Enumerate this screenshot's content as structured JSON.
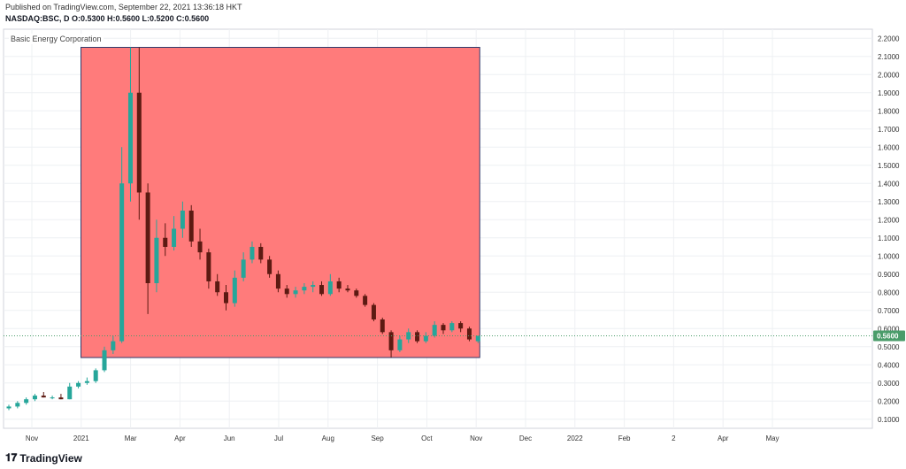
{
  "header": {
    "published": "Published on TradingView.com, September 22, 2021 13:36:18 HKT",
    "ohlc": "NASDAQ:BSC, D  O:0.5300 H:0.5600 L:0.5200 C:0.5600"
  },
  "footer": {
    "logo_mark": "𝟏𝟕",
    "brand": "TradingView"
  },
  "colors": {
    "up": "#26a69a",
    "down": "#5d1a12",
    "box": "#ff7b7b",
    "price_tag": "#4a9c6a"
  },
  "chart_data": {
    "type": "candlestick",
    "title": "Basic Energy Corporation",
    "price_label": "0.5600",
    "x_ticks": [
      "Nov",
      "2021",
      "Mar",
      "Apr",
      "Jun",
      "Jul",
      "Aug",
      "Sep",
      "Oct",
      "Nov",
      "Dec",
      "2022",
      "Feb",
      "2",
      "Apr",
      "May"
    ],
    "y_ticks": [
      "0.1000",
      "0.2000",
      "0.3000",
      "0.4000",
      "0.5000",
      "0.6000",
      "0.7000",
      "0.8000",
      "0.9000",
      "1.0000",
      "1.1000",
      "1.2000",
      "1.3000",
      "1.4000",
      "1.5000",
      "1.6000",
      "1.7000",
      "1.8000",
      "1.9000",
      "2.0000",
      "2.1000",
      "2.2000"
    ],
    "ylim": [
      0.05,
      2.25
    ],
    "last_price": 0.56,
    "box": {
      "x_start": 8.3,
      "x_end": 54.2,
      "y_low": 0.44,
      "y_high": 2.15
    },
    "x_index_range": [
      0,
      100
    ],
    "series": [
      {
        "t": 0,
        "o": 0.16,
        "h": 0.18,
        "l": 0.15,
        "c": 0.17
      },
      {
        "t": 1,
        "o": 0.17,
        "h": 0.2,
        "l": 0.16,
        "c": 0.19
      },
      {
        "t": 2,
        "o": 0.19,
        "h": 0.22,
        "l": 0.18,
        "c": 0.21
      },
      {
        "t": 3,
        "o": 0.21,
        "h": 0.24,
        "l": 0.2,
        "c": 0.23
      },
      {
        "t": 4,
        "o": 0.23,
        "h": 0.25,
        "l": 0.22,
        "c": 0.22
      },
      {
        "t": 5,
        "o": 0.22,
        "h": 0.23,
        "l": 0.21,
        "c": 0.22
      },
      {
        "t": 6,
        "o": 0.22,
        "h": 0.24,
        "l": 0.21,
        "c": 0.21
      },
      {
        "t": 7,
        "o": 0.21,
        "h": 0.3,
        "l": 0.21,
        "c": 0.28
      },
      {
        "t": 8,
        "o": 0.28,
        "h": 0.31,
        "l": 0.27,
        "c": 0.3
      },
      {
        "t": 9,
        "o": 0.3,
        "h": 0.33,
        "l": 0.29,
        "c": 0.31
      },
      {
        "t": 10,
        "o": 0.31,
        "h": 0.38,
        "l": 0.3,
        "c": 0.37
      },
      {
        "t": 11,
        "o": 0.37,
        "h": 0.5,
        "l": 0.36,
        "c": 0.48
      },
      {
        "t": 12,
        "o": 0.48,
        "h": 0.56,
        "l": 0.46,
        "c": 0.53
      },
      {
        "t": 13,
        "o": 0.53,
        "h": 1.6,
        "l": 0.52,
        "c": 1.4
      },
      {
        "t": 14,
        "o": 1.4,
        "h": 2.15,
        "l": 1.3,
        "c": 1.9
      },
      {
        "t": 15,
        "o": 1.9,
        "h": 2.15,
        "l": 1.2,
        "c": 1.35
      },
      {
        "t": 16,
        "o": 1.35,
        "h": 1.4,
        "l": 0.68,
        "c": 0.85
      },
      {
        "t": 17,
        "o": 0.85,
        "h": 1.2,
        "l": 0.8,
        "c": 1.1
      },
      {
        "t": 18,
        "o": 1.1,
        "h": 1.18,
        "l": 1.0,
        "c": 1.05
      },
      {
        "t": 19,
        "o": 1.05,
        "h": 1.22,
        "l": 1.03,
        "c": 1.15
      },
      {
        "t": 20,
        "o": 1.15,
        "h": 1.3,
        "l": 1.1,
        "c": 1.25
      },
      {
        "t": 21,
        "o": 1.25,
        "h": 1.28,
        "l": 1.05,
        "c": 1.08
      },
      {
        "t": 22,
        "o": 1.08,
        "h": 1.15,
        "l": 0.98,
        "c": 1.02
      },
      {
        "t": 23,
        "o": 1.02,
        "h": 1.04,
        "l": 0.82,
        "c": 0.86
      },
      {
        "t": 24,
        "o": 0.86,
        "h": 0.9,
        "l": 0.78,
        "c": 0.8
      },
      {
        "t": 25,
        "o": 0.8,
        "h": 0.84,
        "l": 0.7,
        "c": 0.74
      },
      {
        "t": 26,
        "o": 0.74,
        "h": 0.92,
        "l": 0.72,
        "c": 0.88
      },
      {
        "t": 27,
        "o": 0.88,
        "h": 1.02,
        "l": 0.86,
        "c": 0.98
      },
      {
        "t": 28,
        "o": 0.98,
        "h": 1.08,
        "l": 0.96,
        "c": 1.05
      },
      {
        "t": 29,
        "o": 1.05,
        "h": 1.07,
        "l": 0.96,
        "c": 0.98
      },
      {
        "t": 30,
        "o": 0.98,
        "h": 1.0,
        "l": 0.88,
        "c": 0.9
      },
      {
        "t": 31,
        "o": 0.9,
        "h": 0.92,
        "l": 0.8,
        "c": 0.82
      },
      {
        "t": 32,
        "o": 0.82,
        "h": 0.84,
        "l": 0.77,
        "c": 0.79
      },
      {
        "t": 33,
        "o": 0.79,
        "h": 0.83,
        "l": 0.77,
        "c": 0.81
      },
      {
        "t": 34,
        "o": 0.81,
        "h": 0.85,
        "l": 0.79,
        "c": 0.83
      },
      {
        "t": 35,
        "o": 0.83,
        "h": 0.86,
        "l": 0.8,
        "c": 0.84
      },
      {
        "t": 36,
        "o": 0.84,
        "h": 0.86,
        "l": 0.78,
        "c": 0.79
      },
      {
        "t": 37,
        "o": 0.79,
        "h": 0.9,
        "l": 0.78,
        "c": 0.86
      },
      {
        "t": 38,
        "o": 0.86,
        "h": 0.88,
        "l": 0.8,
        "c": 0.82
      },
      {
        "t": 39,
        "o": 0.82,
        "h": 0.84,
        "l": 0.8,
        "c": 0.81
      },
      {
        "t": 40,
        "o": 0.81,
        "h": 0.82,
        "l": 0.77,
        "c": 0.78
      },
      {
        "t": 41,
        "o": 0.78,
        "h": 0.79,
        "l": 0.72,
        "c": 0.73
      },
      {
        "t": 42,
        "o": 0.73,
        "h": 0.74,
        "l": 0.64,
        "c": 0.65
      },
      {
        "t": 43,
        "o": 0.65,
        "h": 0.66,
        "l": 0.57,
        "c": 0.58
      },
      {
        "t": 44,
        "o": 0.58,
        "h": 0.59,
        "l": 0.44,
        "c": 0.48
      },
      {
        "t": 45,
        "o": 0.48,
        "h": 0.56,
        "l": 0.47,
        "c": 0.54
      },
      {
        "t": 46,
        "o": 0.54,
        "h": 0.6,
        "l": 0.52,
        "c": 0.58
      },
      {
        "t": 47,
        "o": 0.58,
        "h": 0.59,
        "l": 0.52,
        "c": 0.53
      },
      {
        "t": 48,
        "o": 0.53,
        "h": 0.58,
        "l": 0.52,
        "c": 0.56
      },
      {
        "t": 49,
        "o": 0.56,
        "h": 0.64,
        "l": 0.55,
        "c": 0.62
      },
      {
        "t": 50,
        "o": 0.62,
        "h": 0.63,
        "l": 0.57,
        "c": 0.59
      },
      {
        "t": 51,
        "o": 0.59,
        "h": 0.64,
        "l": 0.58,
        "c": 0.63
      },
      {
        "t": 52,
        "o": 0.63,
        "h": 0.64,
        "l": 0.58,
        "c": 0.6
      },
      {
        "t": 53,
        "o": 0.6,
        "h": 0.61,
        "l": 0.53,
        "c": 0.54
      },
      {
        "t": 54,
        "o": 0.53,
        "h": 0.56,
        "l": 0.52,
        "c": 0.56
      }
    ]
  }
}
